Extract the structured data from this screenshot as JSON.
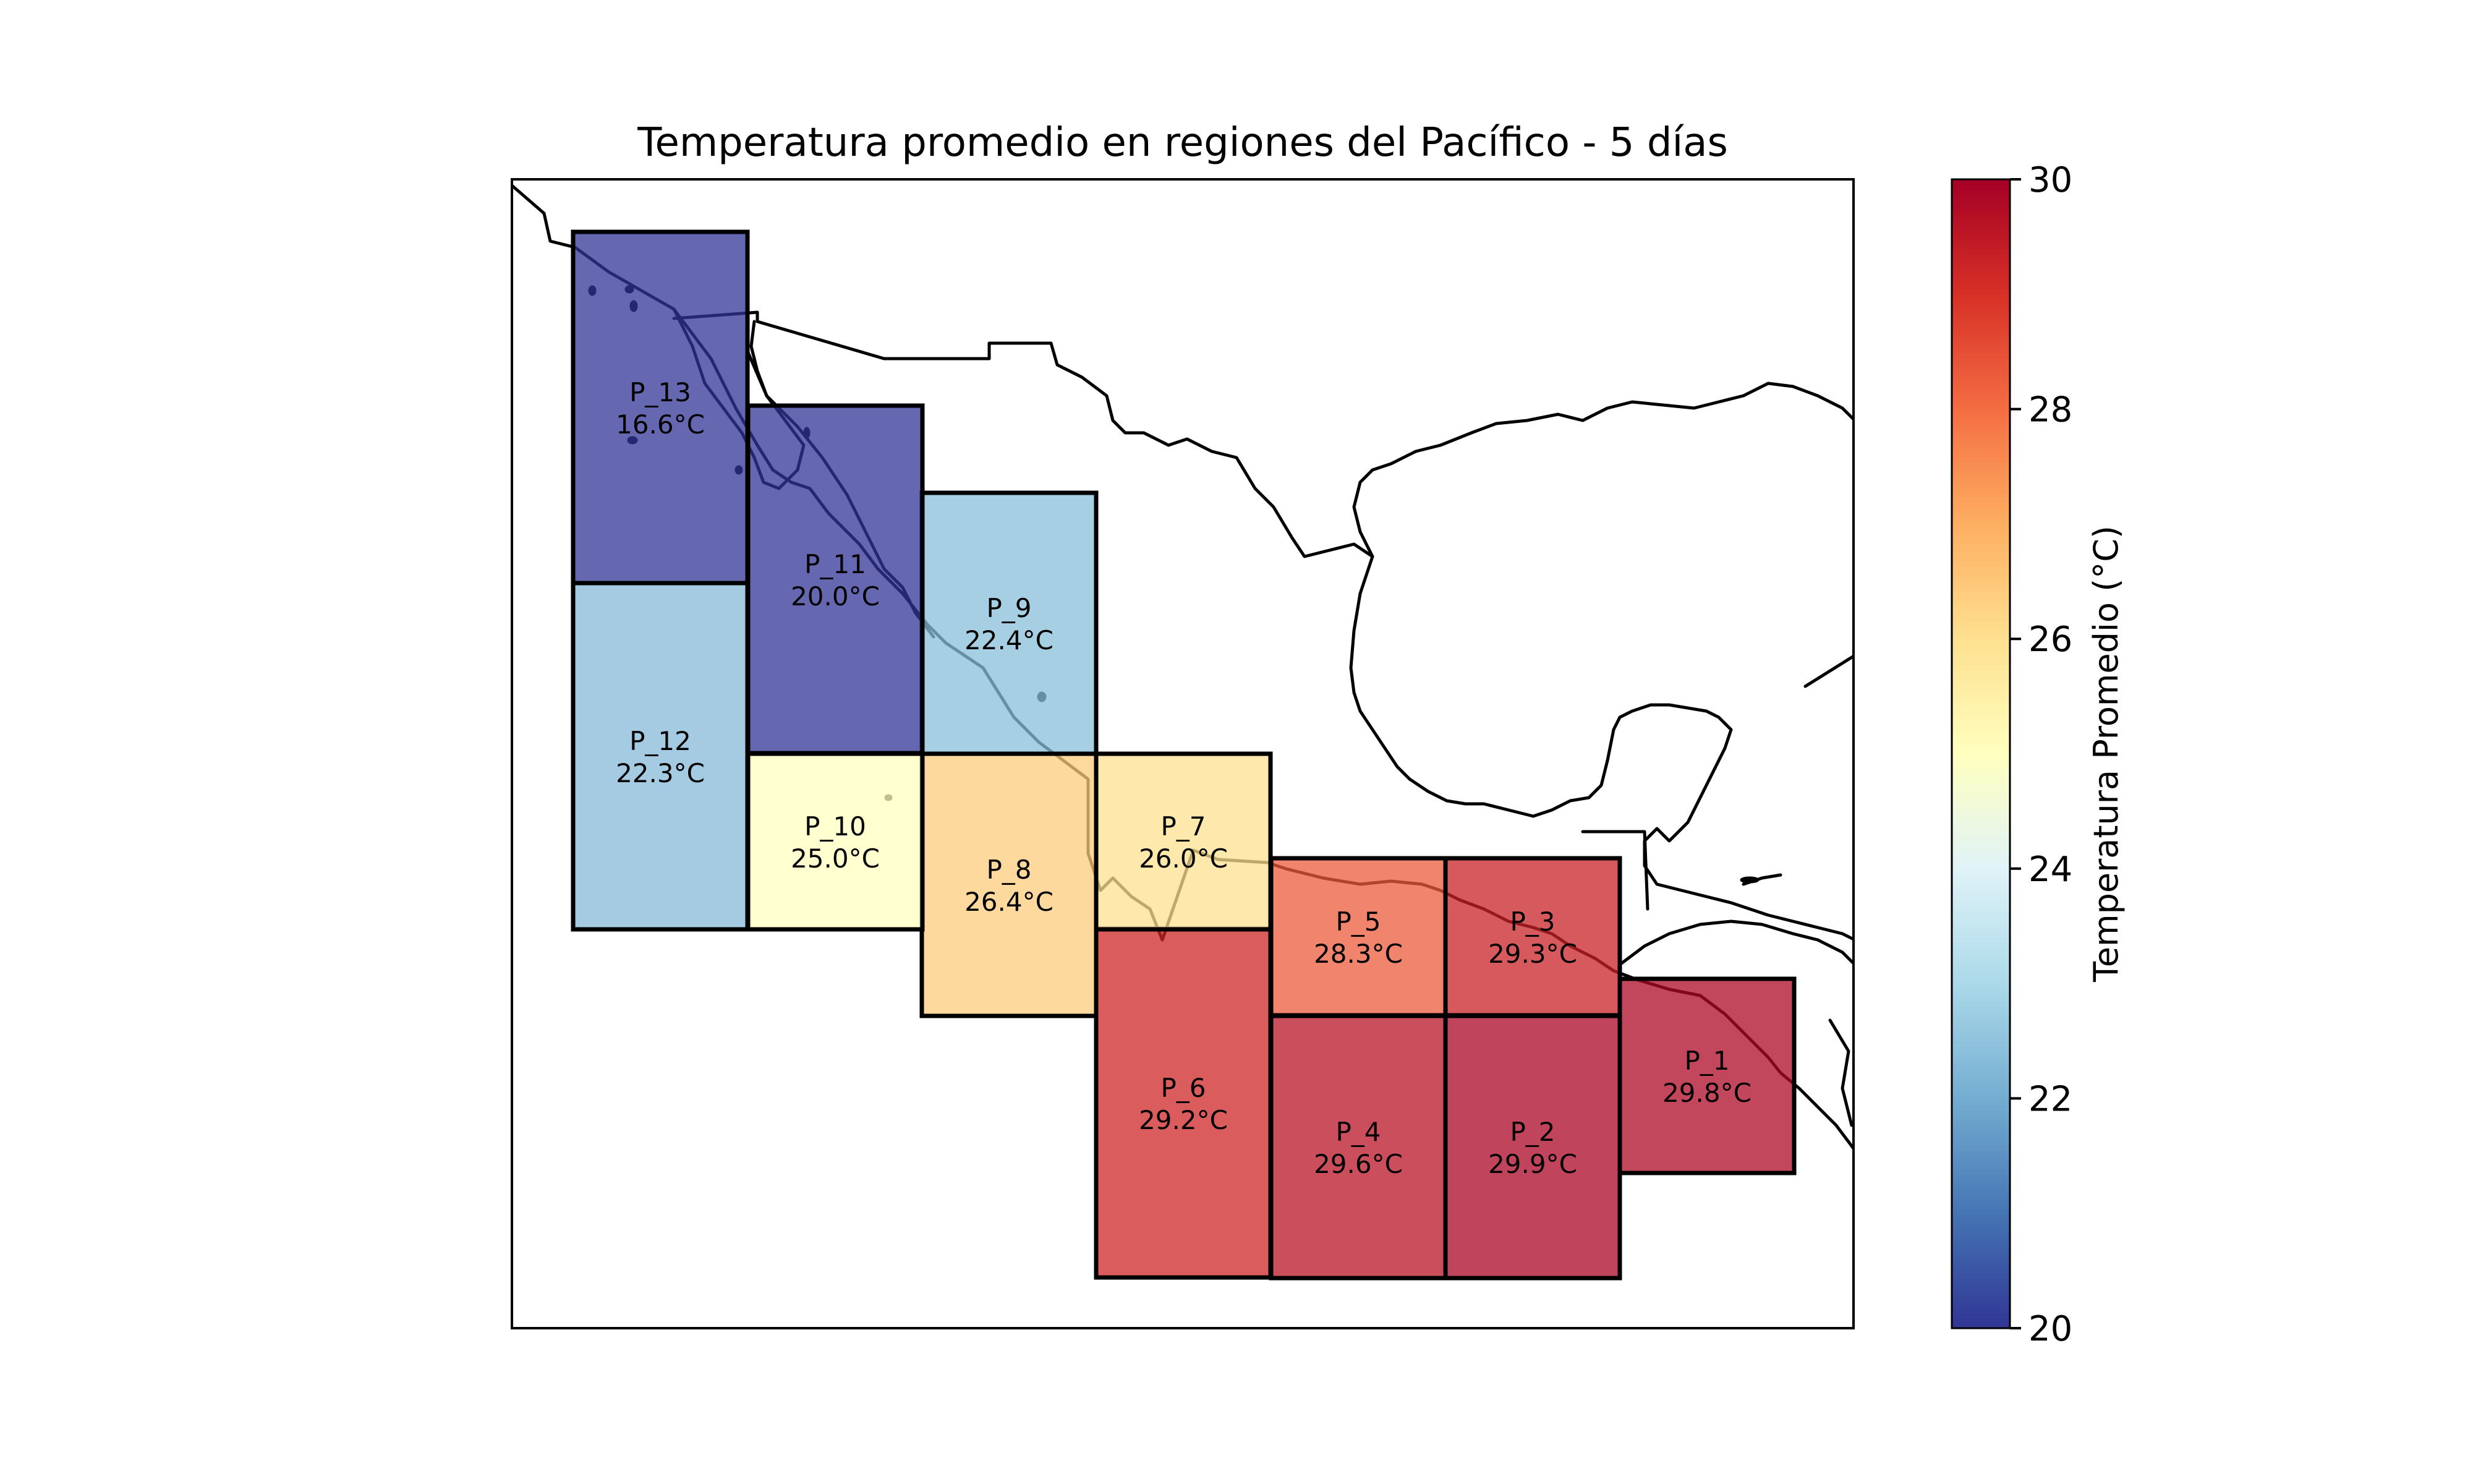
{
  "chart_data": {
    "type": "map",
    "title": "Temperatura promedio en regiones del Pacífico - 5 días",
    "colormap": "RdYlBu_r",
    "colorbar": {
      "label": "Temperatura Promedio (°C)",
      "range": [
        20,
        30
      ],
      "ticks": [
        "20",
        "22",
        "24",
        "26",
        "28",
        "30"
      ]
    },
    "regions": [
      {
        "id": "P_1",
        "value": 29.8,
        "label": "29.8°C"
      },
      {
        "id": "P_2",
        "value": 29.9,
        "label": "29.9°C"
      },
      {
        "id": "P_3",
        "value": 29.3,
        "label": "29.3°C"
      },
      {
        "id": "P_4",
        "value": 29.6,
        "label": "29.6°C"
      },
      {
        "id": "P_5",
        "value": 28.3,
        "label": "28.3°C"
      },
      {
        "id": "P_6",
        "value": 29.2,
        "label": "29.2°C"
      },
      {
        "id": "P_7",
        "value": 26.0,
        "label": "26.0°C"
      },
      {
        "id": "P_8",
        "value": 26.4,
        "label": "26.4°C"
      },
      {
        "id": "P_9",
        "value": 22.4,
        "label": "22.4°C"
      },
      {
        "id": "P_10",
        "value": 25.0,
        "label": "25.0°C"
      },
      {
        "id": "P_11",
        "value": 20.0,
        "label": "20.0°C"
      },
      {
        "id": "P_12",
        "value": 22.3,
        "label": "22.3°C"
      },
      {
        "id": "P_13",
        "value": 16.6,
        "label": "16.6°C"
      }
    ]
  }
}
